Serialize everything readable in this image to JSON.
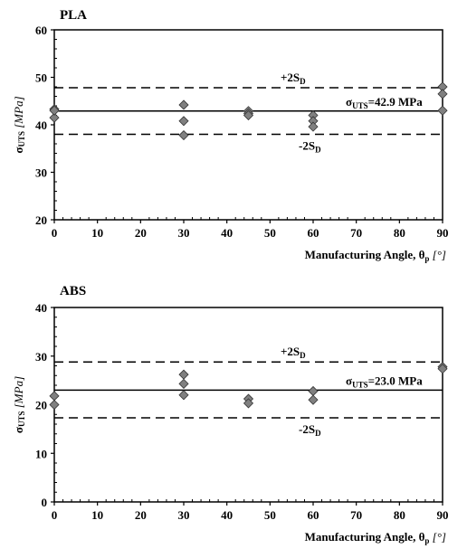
{
  "chart_data": [
    {
      "type": "scatter",
      "title": "PLA",
      "xlabel": "Manufacturing Angle, θp [°]",
      "ylabel": "σUTS [MPa]",
      "xlim": [
        0,
        90
      ],
      "ylim": [
        20,
        60
      ],
      "xticks": [
        0,
        10,
        20,
        30,
        40,
        50,
        60,
        70,
        80,
        90
      ],
      "yticks": [
        20,
        30,
        40,
        50,
        60
      ],
      "points": [
        {
          "x": 0,
          "y": 43.3
        },
        {
          "x": 0,
          "y": 41.5
        },
        {
          "x": 0,
          "y": 43.0
        },
        {
          "x": 30,
          "y": 44.2
        },
        {
          "x": 30,
          "y": 40.8
        },
        {
          "x": 30,
          "y": 37.8
        },
        {
          "x": 45,
          "y": 42.9
        },
        {
          "x": 45,
          "y": 42.4
        },
        {
          "x": 45,
          "y": 42.0
        },
        {
          "x": 60,
          "y": 42.0
        },
        {
          "x": 60,
          "y": 40.8
        },
        {
          "x": 60,
          "y": 39.6
        },
        {
          "x": 90,
          "y": 48.0
        },
        {
          "x": 90,
          "y": 46.5
        },
        {
          "x": 90,
          "y": 43.0
        }
      ],
      "lines": [
        {
          "y": 42.9,
          "style": "solid",
          "label_main": "σ",
          "label_sub": "UTS",
          "label_rest": "=42.9 MPa"
        },
        {
          "y": 47.8,
          "style": "dashed",
          "label_main": "+2S",
          "label_sub": "D",
          "label_rest": ""
        },
        {
          "y": 38.0,
          "style": "dashed",
          "label_main": "-2S",
          "label_sub": "D",
          "label_rest": ""
        }
      ]
    },
    {
      "type": "scatter",
      "title": "ABS",
      "xlabel": "Manufacturing Angle, θp [°]",
      "ylabel": "σUTS [MPa]",
      "xlim": [
        0,
        90
      ],
      "ylim": [
        0,
        40
      ],
      "xticks": [
        0,
        10,
        20,
        30,
        40,
        50,
        60,
        70,
        80,
        90
      ],
      "yticks": [
        0,
        10,
        20,
        30,
        40
      ],
      "points": [
        {
          "x": 0,
          "y": 21.8
        },
        {
          "x": 0,
          "y": 20.0
        },
        {
          "x": 30,
          "y": 26.2
        },
        {
          "x": 30,
          "y": 24.3
        },
        {
          "x": 30,
          "y": 22.0
        },
        {
          "x": 45,
          "y": 21.2
        },
        {
          "x": 45,
          "y": 20.3
        },
        {
          "x": 60,
          "y": 22.8
        },
        {
          "x": 60,
          "y": 21.0
        },
        {
          "x": 90,
          "y": 27.8
        },
        {
          "x": 90,
          "y": 27.4
        }
      ],
      "lines": [
        {
          "y": 23.0,
          "style": "solid",
          "label_main": "σ",
          "label_sub": "UTS",
          "label_rest": "=23.0 MPa"
        },
        {
          "y": 28.8,
          "style": "dashed",
          "label_main": "+2S",
          "label_sub": "D",
          "label_rest": ""
        },
        {
          "y": 17.3,
          "style": "dashed",
          "label_main": "-2S",
          "label_sub": "D",
          "label_rest": ""
        }
      ]
    }
  ]
}
